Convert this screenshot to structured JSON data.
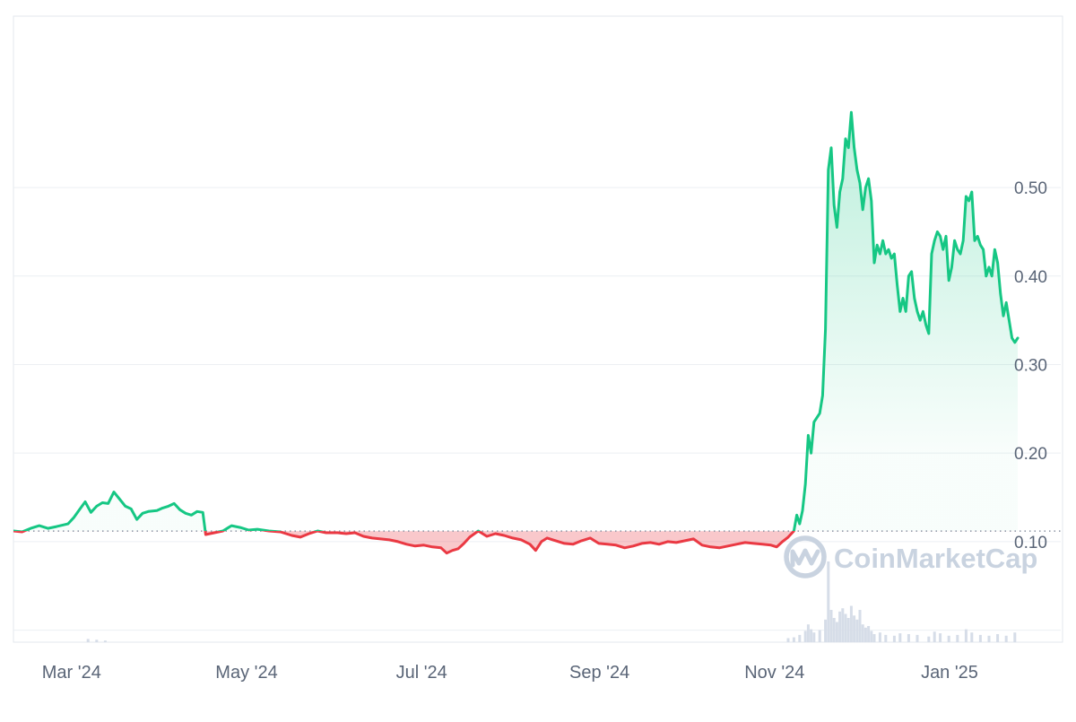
{
  "watermark": "CoinMarketCap",
  "colors": {
    "up": "#16c784",
    "down": "#ea3943",
    "grid": "#eceff3",
    "axis_text": "#5a6577",
    "baseline": "#8a93a3",
    "volume": "#d6dde8"
  },
  "chart_data": {
    "type": "area",
    "grid": true,
    "baseline_value": 0.1119,
    "ylim": [
      -0.0136,
      0.6936
    ],
    "xlim": [
      "2024-02-11",
      "2025-02-10"
    ],
    "y_ticks": [
      0.1,
      0.2,
      0.3,
      0.4,
      0.5
    ],
    "y_tick_labels": [
      "0.10",
      "0.20",
      "0.30",
      "0.40",
      "0.50"
    ],
    "x_tick_dates": [
      "2024-03-01",
      "2024-05-01",
      "2024-07-01",
      "2024-09-01",
      "2024-11-01",
      "2025-01-01"
    ],
    "x_tick_labels": [
      "Mar '24",
      "May '24",
      "Jul '24",
      "Sep '24",
      "Nov '24",
      "Jan '25"
    ],
    "series": [
      {
        "points": [
          [
            "2024-02-11",
            0.112
          ],
          [
            "2024-02-14",
            0.111
          ],
          [
            "2024-02-17",
            0.115
          ],
          [
            "2024-02-20",
            0.118
          ],
          [
            "2024-02-23",
            0.115
          ],
          [
            "2024-02-26",
            0.117
          ],
          [
            "2024-03-01",
            0.12
          ],
          [
            "2024-03-03",
            0.127
          ],
          [
            "2024-03-05",
            0.136
          ],
          [
            "2024-03-07",
            0.145
          ],
          [
            "2024-03-09",
            0.133
          ],
          [
            "2024-03-11",
            0.14
          ],
          [
            "2024-03-13",
            0.144
          ],
          [
            "2024-03-15",
            0.143
          ],
          [
            "2024-03-17",
            0.156
          ],
          [
            "2024-03-19",
            0.148
          ],
          [
            "2024-03-21",
            0.14
          ],
          [
            "2024-03-23",
            0.137
          ],
          [
            "2024-03-25",
            0.125
          ],
          [
            "2024-03-27",
            0.132
          ],
          [
            "2024-03-29",
            0.134
          ],
          [
            "2024-04-01",
            0.135
          ],
          [
            "2024-04-03",
            0.138
          ],
          [
            "2024-04-05",
            0.14
          ],
          [
            "2024-04-07",
            0.143
          ],
          [
            "2024-04-09",
            0.136
          ],
          [
            "2024-04-11",
            0.132
          ],
          [
            "2024-04-13",
            0.13
          ],
          [
            "2024-04-15",
            0.134
          ],
          [
            "2024-04-17",
            0.133
          ],
          [
            "2024-04-18",
            0.108
          ],
          [
            "2024-04-21",
            0.11
          ],
          [
            "2024-04-24",
            0.112
          ],
          [
            "2024-04-27",
            0.118
          ],
          [
            "2024-04-30",
            0.116
          ],
          [
            "2024-05-03",
            0.113
          ],
          [
            "2024-05-06",
            0.114
          ],
          [
            "2024-05-10",
            0.112
          ],
          [
            "2024-05-14",
            0.111
          ],
          [
            "2024-05-18",
            0.107
          ],
          [
            "2024-05-21",
            0.105
          ],
          [
            "2024-05-24",
            0.109
          ],
          [
            "2024-05-27",
            0.112
          ],
          [
            "2024-05-30",
            0.11
          ],
          [
            "2024-06-03",
            0.11
          ],
          [
            "2024-06-06",
            0.109
          ],
          [
            "2024-06-09",
            0.11
          ],
          [
            "2024-06-12",
            0.106
          ],
          [
            "2024-06-15",
            0.104
          ],
          [
            "2024-06-18",
            0.103
          ],
          [
            "2024-06-21",
            0.102
          ],
          [
            "2024-06-24",
            0.1
          ],
          [
            "2024-06-27",
            0.097
          ],
          [
            "2024-06-30",
            0.095
          ],
          [
            "2024-07-03",
            0.096
          ],
          [
            "2024-07-06",
            0.094
          ],
          [
            "2024-07-09",
            0.093
          ],
          [
            "2024-07-11",
            0.087
          ],
          [
            "2024-07-13",
            0.09
          ],
          [
            "2024-07-15",
            0.092
          ],
          [
            "2024-07-17",
            0.098
          ],
          [
            "2024-07-19",
            0.105
          ],
          [
            "2024-07-22",
            0.112
          ],
          [
            "2024-07-25",
            0.106
          ],
          [
            "2024-07-28",
            0.109
          ],
          [
            "2024-07-31",
            0.107
          ],
          [
            "2024-08-03",
            0.104
          ],
          [
            "2024-08-06",
            0.102
          ],
          [
            "2024-08-09",
            0.097
          ],
          [
            "2024-08-11",
            0.09
          ],
          [
            "2024-08-13",
            0.1
          ],
          [
            "2024-08-15",
            0.104
          ],
          [
            "2024-08-18",
            0.101
          ],
          [
            "2024-08-21",
            0.098
          ],
          [
            "2024-08-24",
            0.097
          ],
          [
            "2024-08-27",
            0.101
          ],
          [
            "2024-08-30",
            0.104
          ],
          [
            "2024-09-02",
            0.098
          ],
          [
            "2024-09-05",
            0.097
          ],
          [
            "2024-09-08",
            0.096
          ],
          [
            "2024-09-11",
            0.093
          ],
          [
            "2024-09-14",
            0.095
          ],
          [
            "2024-09-17",
            0.098
          ],
          [
            "2024-09-20",
            0.099
          ],
          [
            "2024-09-23",
            0.097
          ],
          [
            "2024-09-26",
            0.1
          ],
          [
            "2024-09-29",
            0.099
          ],
          [
            "2024-10-02",
            0.101
          ],
          [
            "2024-10-05",
            0.103
          ],
          [
            "2024-10-08",
            0.096
          ],
          [
            "2024-10-11",
            0.094
          ],
          [
            "2024-10-14",
            0.093
          ],
          [
            "2024-10-17",
            0.095
          ],
          [
            "2024-10-20",
            0.097
          ],
          [
            "2024-10-23",
            0.099
          ],
          [
            "2024-10-26",
            0.098
          ],
          [
            "2024-10-29",
            0.097
          ],
          [
            "2024-11-01",
            0.096
          ],
          [
            "2024-11-03",
            0.094
          ],
          [
            "2024-11-05",
            0.1
          ],
          [
            "2024-11-07",
            0.105
          ],
          [
            "2024-11-09",
            0.112
          ],
          [
            "2024-11-10",
            0.13
          ],
          [
            "2024-11-11",
            0.12
          ],
          [
            "2024-11-12",
            0.135
          ],
          [
            "2024-11-13",
            0.165
          ],
          [
            "2024-11-14",
            0.22
          ],
          [
            "2024-11-15",
            0.2
          ],
          [
            "2024-11-16",
            0.235
          ],
          [
            "2024-11-18",
            0.245
          ],
          [
            "2024-11-19",
            0.265
          ],
          [
            "2024-11-20",
            0.34
          ],
          [
            "2024-11-21",
            0.52
          ],
          [
            "2024-11-22",
            0.545
          ],
          [
            "2024-11-23",
            0.48
          ],
          [
            "2024-11-24",
            0.455
          ],
          [
            "2024-11-25",
            0.495
          ],
          [
            "2024-11-26",
            0.51
          ],
          [
            "2024-11-27",
            0.555
          ],
          [
            "2024-11-28",
            0.545
          ],
          [
            "2024-11-29",
            0.585
          ],
          [
            "2024-11-30",
            0.545
          ],
          [
            "2024-12-01",
            0.52
          ],
          [
            "2024-12-02",
            0.505
          ],
          [
            "2024-12-03",
            0.475
          ],
          [
            "2024-12-04",
            0.5
          ],
          [
            "2024-12-05",
            0.51
          ],
          [
            "2024-12-06",
            0.485
          ],
          [
            "2024-12-07",
            0.415
          ],
          [
            "2024-12-08",
            0.435
          ],
          [
            "2024-12-09",
            0.425
          ],
          [
            "2024-12-10",
            0.44
          ],
          [
            "2024-12-11",
            0.425
          ],
          [
            "2024-12-12",
            0.43
          ],
          [
            "2024-12-13",
            0.42
          ],
          [
            "2024-12-14",
            0.425
          ],
          [
            "2024-12-15",
            0.39
          ],
          [
            "2024-12-16",
            0.36
          ],
          [
            "2024-12-17",
            0.375
          ],
          [
            "2024-12-18",
            0.36
          ],
          [
            "2024-12-19",
            0.4
          ],
          [
            "2024-12-20",
            0.405
          ],
          [
            "2024-12-21",
            0.375
          ],
          [
            "2024-12-22",
            0.36
          ],
          [
            "2024-12-23",
            0.35
          ],
          [
            "2024-12-24",
            0.36
          ],
          [
            "2024-12-25",
            0.345
          ],
          [
            "2024-12-26",
            0.335
          ],
          [
            "2024-12-27",
            0.425
          ],
          [
            "2024-12-28",
            0.44
          ],
          [
            "2024-12-29",
            0.45
          ],
          [
            "2024-12-30",
            0.445
          ],
          [
            "2024-12-31",
            0.43
          ],
          [
            "2025-01-01",
            0.445
          ],
          [
            "2025-01-02",
            0.395
          ],
          [
            "2025-01-03",
            0.41
          ],
          [
            "2025-01-04",
            0.44
          ],
          [
            "2025-01-05",
            0.43
          ],
          [
            "2025-01-06",
            0.425
          ],
          [
            "2025-01-07",
            0.44
          ],
          [
            "2025-01-08",
            0.49
          ],
          [
            "2025-01-09",
            0.485
          ],
          [
            "2025-01-10",
            0.495
          ],
          [
            "2025-01-11",
            0.44
          ],
          [
            "2025-01-12",
            0.445
          ],
          [
            "2025-01-13",
            0.435
          ],
          [
            "2025-01-14",
            0.43
          ],
          [
            "2025-01-15",
            0.4
          ],
          [
            "2025-01-16",
            0.41
          ],
          [
            "2025-01-17",
            0.4
          ],
          [
            "2025-01-18",
            0.43
          ],
          [
            "2025-01-19",
            0.415
          ],
          [
            "2025-01-20",
            0.38
          ],
          [
            "2025-01-21",
            0.355
          ],
          [
            "2025-01-22",
            0.37
          ],
          [
            "2025-01-24",
            0.33
          ],
          [
            "2025-01-25",
            0.325
          ],
          [
            "2025-01-26",
            0.33
          ]
        ]
      }
    ],
    "volume": [
      [
        "2024-03-08",
        0.04
      ],
      [
        "2024-03-11",
        0.03
      ],
      [
        "2024-03-14",
        0.02
      ],
      [
        "2024-11-07",
        0.05
      ],
      [
        "2024-11-09",
        0.06
      ],
      [
        "2024-11-11",
        0.09
      ],
      [
        "2024-11-13",
        0.14
      ],
      [
        "2024-11-14",
        0.22
      ],
      [
        "2024-11-15",
        0.16
      ],
      [
        "2024-11-16",
        0.12
      ],
      [
        "2024-11-18",
        0.15
      ],
      [
        "2024-11-20",
        0.28
      ],
      [
        "2024-11-21",
        1.0
      ],
      [
        "2024-11-22",
        0.4
      ],
      [
        "2024-11-23",
        0.3
      ],
      [
        "2024-11-24",
        0.25
      ],
      [
        "2024-11-25",
        0.38
      ],
      [
        "2024-11-26",
        0.42
      ],
      [
        "2024-11-27",
        0.35
      ],
      [
        "2024-11-28",
        0.3
      ],
      [
        "2024-11-29",
        0.45
      ],
      [
        "2024-11-30",
        0.33
      ],
      [
        "2024-12-01",
        0.28
      ],
      [
        "2024-12-02",
        0.4
      ],
      [
        "2024-12-03",
        0.22
      ],
      [
        "2024-12-04",
        0.18
      ],
      [
        "2024-12-05",
        0.2
      ],
      [
        "2024-12-06",
        0.14
      ],
      [
        "2024-12-07",
        0.1
      ],
      [
        "2024-12-09",
        0.12
      ],
      [
        "2024-12-11",
        0.09
      ],
      [
        "2024-12-14",
        0.08
      ],
      [
        "2024-12-16",
        0.11
      ],
      [
        "2024-12-19",
        0.1
      ],
      [
        "2024-12-22",
        0.09
      ],
      [
        "2024-12-26",
        0.07
      ],
      [
        "2024-12-28",
        0.13
      ],
      [
        "2024-12-30",
        0.11
      ],
      [
        "2025-01-02",
        0.08
      ],
      [
        "2025-01-05",
        0.09
      ],
      [
        "2025-01-08",
        0.16
      ],
      [
        "2025-01-10",
        0.12
      ],
      [
        "2025-01-13",
        0.09
      ],
      [
        "2025-01-16",
        0.08
      ],
      [
        "2025-01-19",
        0.1
      ],
      [
        "2025-01-22",
        0.08
      ],
      [
        "2025-01-25",
        0.12
      ]
    ]
  }
}
